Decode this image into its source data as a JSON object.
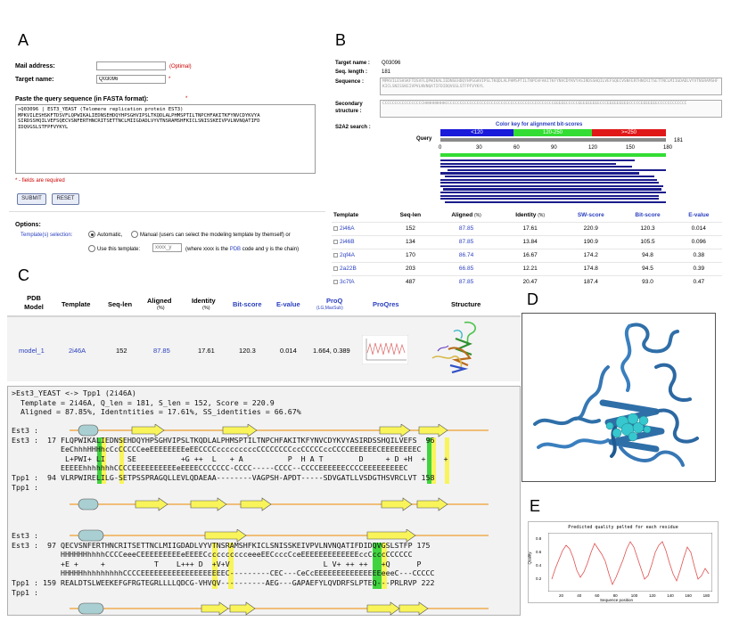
{
  "panels": {
    "a": "A",
    "b": "B",
    "c": "C",
    "d": "D",
    "e": "E"
  },
  "form": {
    "mail_label": "Mail address:",
    "mail_value": "",
    "optional": "(Optimal)",
    "target_label": "Target name:",
    "target_value": "Q03096",
    "asterisk": "*",
    "paste_label": "Paste the query sequence (in FASTA format):",
    "fasta_text": ">Q03096 | EST3_YEAST (Telomere replication protein EST3)\nMPKVILESHSKFTDSVFLQPWIKALIEDNSEHDQYHPSGHVIPSLTKQDLALPHMSPTILTNPCHFAKITKFYNVCDYKVYA\nSIRDSSHQILVEFSQECVSNFERTHNCRITSETTNCLMIIGDADLVYVTNSRAMSHFKICLSNISSKEIVPVLNVNQATIFD\nIDQVGSLSTFPFVYKYL",
    "required_note": "* - fields are required",
    "submit": "SUBMIT",
    "reset": "RESET",
    "options_title": "Options:",
    "templates_label": "Template(s) selection:",
    "auto_label": "Automatic,",
    "manual_label": "Manual (users can select the modeling template by themself) or",
    "use_label": "Use this template:",
    "use_placeholder": "xxxx_y",
    "where_pre": "(where xxxx is the ",
    "pdb_link": "PDB",
    "where_post": " code and y is the chain)"
  },
  "resultB": {
    "target_label": "Target name :",
    "target_value": "Q03096",
    "seqlen_label": "Seq. length :",
    "seqlen_value": "181",
    "sequence_label": "Sequence :",
    "sequence_text": "MPKVILESHSKFTDSVFLQPWIKALIEDNSEHDQYHPSGHVIPSLTKQDLALPHMSPTILTNPCHFAKITKFYNVCDYKVYASIRDSSHQILVEFSQECVSNFERTHNCRITSETTNCLMIIGDADLVYVTNSRAMSHFKICLSNISSKEIVPVLNVNQATIFDIDQVGSLSTFPFVYKYL",
    "secondary_label": "Secondary structure :",
    "secondary_text": "CCCCCCCCCCCCCCCCCHHHHHHHHHCCCCCCCCCCCCCCCCCCCCCCCCCCCCCCCCCCCCCCCCCCCCCEEEEECCCCCEEEEEEEEECCCEEEEEEEEECCCCCEEEEEEECCCCCCCCCCCC",
    "s2a2_label": "S2A2 search :",
    "colorkey_title": "Color key for alignment bit-scores",
    "key_low": "<120",
    "key_mid": "120-250",
    "key_high": ">=250",
    "query_label": "Query",
    "query_len": "181",
    "ticks": [
      "0",
      "30",
      "60",
      "90",
      "120",
      "150",
      "180"
    ],
    "hits_frac": [
      [
        0.0,
        0.86
      ],
      [
        0.0,
        0.78
      ],
      [
        0.0,
        0.85
      ],
      [
        0.03,
        1.0
      ],
      [
        0.0,
        0.88
      ],
      [
        0.02,
        0.95
      ],
      [
        0.0,
        0.96
      ],
      [
        0.0,
        0.97
      ],
      [
        0.0,
        0.99
      ],
      [
        0.01,
        0.98
      ],
      [
        0.0,
        1.0
      ],
      [
        0.0,
        0.97
      ],
      [
        0.0,
        0.97
      ],
      [
        0.02,
        1.0
      ]
    ],
    "columns": [
      "Template",
      "Seq-len",
      "Aligned",
      "(%)",
      "Identity",
      "(%)",
      "SW-score",
      "Bit-score",
      "E-value"
    ],
    "rows": [
      {
        "template": "2i46A",
        "seqlen": "152",
        "aligned": "87.85",
        "identity": "17.61",
        "sw": "220.9",
        "bit": "120.3",
        "evalue": "0.014"
      },
      {
        "template": "2i46B",
        "seqlen": "134",
        "aligned": "87.85",
        "identity": "13.84",
        "sw": "190.9",
        "bit": "105.5",
        "evalue": "0.096"
      },
      {
        "template": "2qf4A",
        "seqlen": "170",
        "aligned": "86.74",
        "identity": "16.67",
        "sw": "174.2",
        "bit": "94.8",
        "evalue": "0.38"
      },
      {
        "template": "2a22B",
        "seqlen": "203",
        "aligned": "66.85",
        "identity": "12.21",
        "sw": "174.8",
        "bit": "94.5",
        "evalue": "0.39"
      },
      {
        "template": "3c7fA",
        "seqlen": "487",
        "aligned": "87.85",
        "identity": "20.47",
        "sw": "187.4",
        "bit": "93.0",
        "evalue": "0.47"
      }
    ]
  },
  "modelC": {
    "cols": {
      "pdb": "PDB",
      "model": "Model",
      "template": "Template",
      "seqlen": "Seq-len",
      "aligned": "Aligned",
      "aligned_unit": "(%)",
      "identity": "Identity",
      "identity_unit": "(%)",
      "bitscore": "Bit-score",
      "evalue": "E-value",
      "proq": "ProQ",
      "proq_sub": "(LG,MaxSub)",
      "proqres": "ProQres",
      "structure": "Structure"
    },
    "row": {
      "model": "model_1",
      "template": "2i46A",
      "seqlen": "152",
      "aligned": "87.85",
      "identity": "17.61",
      "bitscore": "120.3",
      "evalue": "0.014",
      "proq": "1.664, 0.389"
    }
  },
  "alignment": {
    "header": [
      ">Est3_YEAST <-> Tpp1 (2i46A)",
      "  Template = 2i46A, Q_len = 181, S_len = 152, Score = 220.9",
      "  Aligned = 87.85%, Identntities = 17.61%, SS_identities = 66.67%"
    ],
    "block1": [
      "Est3 :",
      "Est3 :  17 FLQPWIKALIEDNSEHDQYHPSGHVIPSLTKQDLALPHMSPTILTNPCHFAKITKFYNVCDYKVYASIRDSSHQILVEFS  96",
      "           EeChhhHHHhcCcCCCCCeeEEEEEEEEeEECCCCcccccccccCCCCCCCCccCCCCCccCCCCEEEEEECEEEEEEEEC",
      "            L+PWI+ LI     SE          +G ++  L   + A          P  H A T        D     + D +H  +    +",
      "           EEEEEhhhhhhhCCCCEEEEEEEEEEeEEEECCCCCCC-CCCC-----CCCC--CCCCEEEEEECCCCEEEEEEEEEC",
      "Tpp1 :  94 VLRPWIRELILG-SETPSSPRAGQLLEVLQDAEAA--------VAGPSH-APDT-----SDVGATLLVSDGTHSVRCLVT 158",
      "Tpp1 :"
    ],
    "block2": [
      "Est3 :",
      "Est3 :  97 QECVSNFERTHNCRITSETTNCLMIIGDADLVYVTNSRAMSHFKICLSNISSKEIVPVLNVNQATIFDIDQVGSLSTFP 175",
      "           HHHHHHhhhhCCCCeeeCEEEEEEEEEeEEEECccccccccceeeEECcccCceEEEEEEEEEEEEEccCcccCCCCCC",
      "           +E +     +           T    L+++ D  +V+V                     L V+ ++ ++   +Q      P",
      "           HHHHHhhhhhhhhhCCCCEEEEEEEEEEEEEEEEEEEC---------CEC---CeCcEEEEEEEEEEEEEEEeeeC---CCCCC",
      "Tpp1 : 159 REALDTSLWEEKEFGFRGTEGRLLLLQDCG-VHVQV----------AEG---GAPAEFYLQVDRFSLPTEQ---PRLRVP 222",
      "Tpp1 :"
    ]
  },
  "plotE": {
    "title": "Predicted quality pelted for each residue",
    "ylabel": "Quality",
    "xlabel": "Sequence position",
    "yticks": [
      "0.8",
      "0.6",
      "0.4",
      "0.2"
    ],
    "xticks": [
      "20",
      "40",
      "60",
      "80",
      "100",
      "120",
      "140",
      "160",
      "180"
    ]
  },
  "colors": {
    "blue": "#1a1adb",
    "green": "#33dd33",
    "red": "#e01818",
    "link": "#2a3fbf",
    "hit": "#1c1c8c",
    "helix": "#a9cfd2",
    "strand": "#f8f45a"
  }
}
